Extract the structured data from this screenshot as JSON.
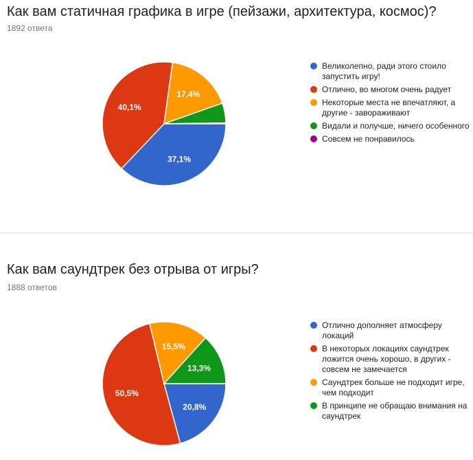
{
  "charts": [
    {
      "title": "Как вам статичная графика в игре (пейзажи, архитектура, космос)?",
      "count": "1892 ответа"
    },
    {
      "title": "Как вам саундтрек без отрыва от игры?",
      "count": "1888 ответов"
    }
  ],
  "chart_data": [
    {
      "type": "pie",
      "title": "Как вам статичная графика в игре (пейзажи, архитектура, космос)?",
      "legend_position": "right",
      "slices": [
        {
          "label": "Великолепно, ради этого стоило запустить игру!",
          "value": 37.1,
          "display": "37,1%",
          "color": "#3366cc"
        },
        {
          "label": "Отлично, во многом очень радует",
          "value": 40.1,
          "display": "40,1%",
          "color": "#dc3912"
        },
        {
          "label": "Некоторые места не впечатляют, а другие - завораживают",
          "value": 17.4,
          "display": "17,4%",
          "color": "#ff9900"
        },
        {
          "label": "Видали и получше, ничего особенного",
          "value": 5.2,
          "display": "",
          "color": "#109618"
        },
        {
          "label": "Совсем не понравилось",
          "value": 0.2,
          "display": "",
          "color": "#990099"
        }
      ]
    },
    {
      "type": "pie",
      "title": "Как вам саундтрек без отрыва от игры?",
      "legend_position": "right",
      "slices": [
        {
          "label": "Отлично дополняет атмосферу локаций",
          "value": 20.8,
          "display": "20,8%",
          "color": "#3366cc"
        },
        {
          "label": "В некоторых локациях саундтрек ложится очень хорошо, в других - совсем не замечается",
          "value": 50.5,
          "display": "50,5%",
          "color": "#dc3912"
        },
        {
          "label": "Саундтрек больше не подходит игре, чем подходит",
          "value": 15.5,
          "display": "15,5%",
          "color": "#ff9900"
        },
        {
          "label": "В принципе не обращаю внимания на саундтрек",
          "value": 13.3,
          "display": "13,3%",
          "color": "#109618"
        }
      ]
    }
  ]
}
